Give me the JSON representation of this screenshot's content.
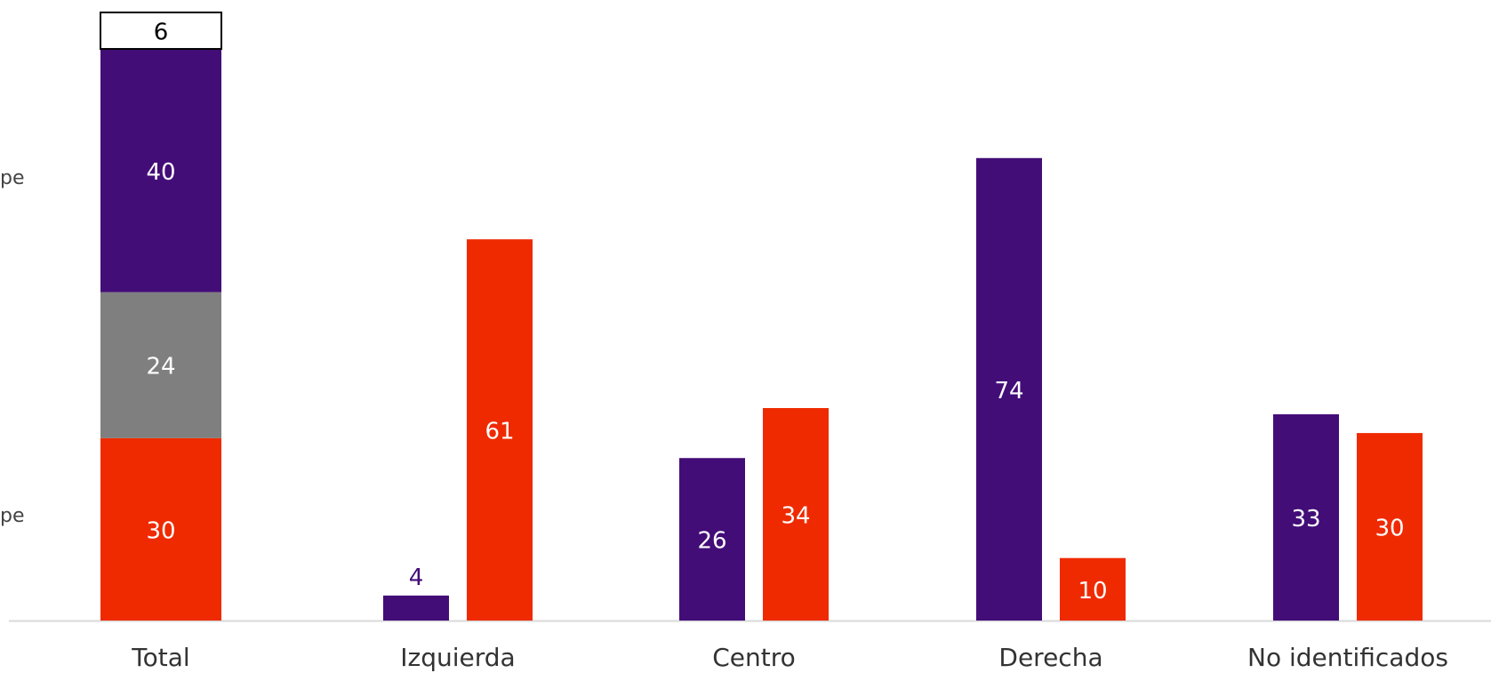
{
  "colors": {
    "purple": "#430D78",
    "gray": "#7F7F7F",
    "red": "#EF2A00",
    "white": "#FFFFFF",
    "black": "#000000",
    "axis": "#D9D9D9",
    "text": "#333333"
  },
  "side_labels": [
    "pe",
    "pe"
  ],
  "chart_data": {
    "type": "bar",
    "categories": [
      "Total",
      "Izquierda",
      "Centro",
      "Derecha",
      "No identificados"
    ],
    "total_stacked": {
      "segments": [
        {
          "value": 30,
          "color": "red"
        },
        {
          "value": 24,
          "color": "gray"
        },
        {
          "value": 40,
          "color": "purple"
        },
        {
          "value": 6,
          "color": "white"
        }
      ]
    },
    "grouped": {
      "categories": [
        "Izquierda",
        "Centro",
        "Derecha",
        "No identificados"
      ],
      "series": [
        {
          "values": [
            4,
            26,
            74,
            33
          ],
          "color": "purple"
        },
        {
          "values": [
            61,
            34,
            10,
            30
          ],
          "color": "red"
        }
      ]
    },
    "ylim": [
      0,
      100
    ],
    "grid": false,
    "legend": "none",
    "title": "",
    "xlabel": "",
    "ylabel": ""
  }
}
